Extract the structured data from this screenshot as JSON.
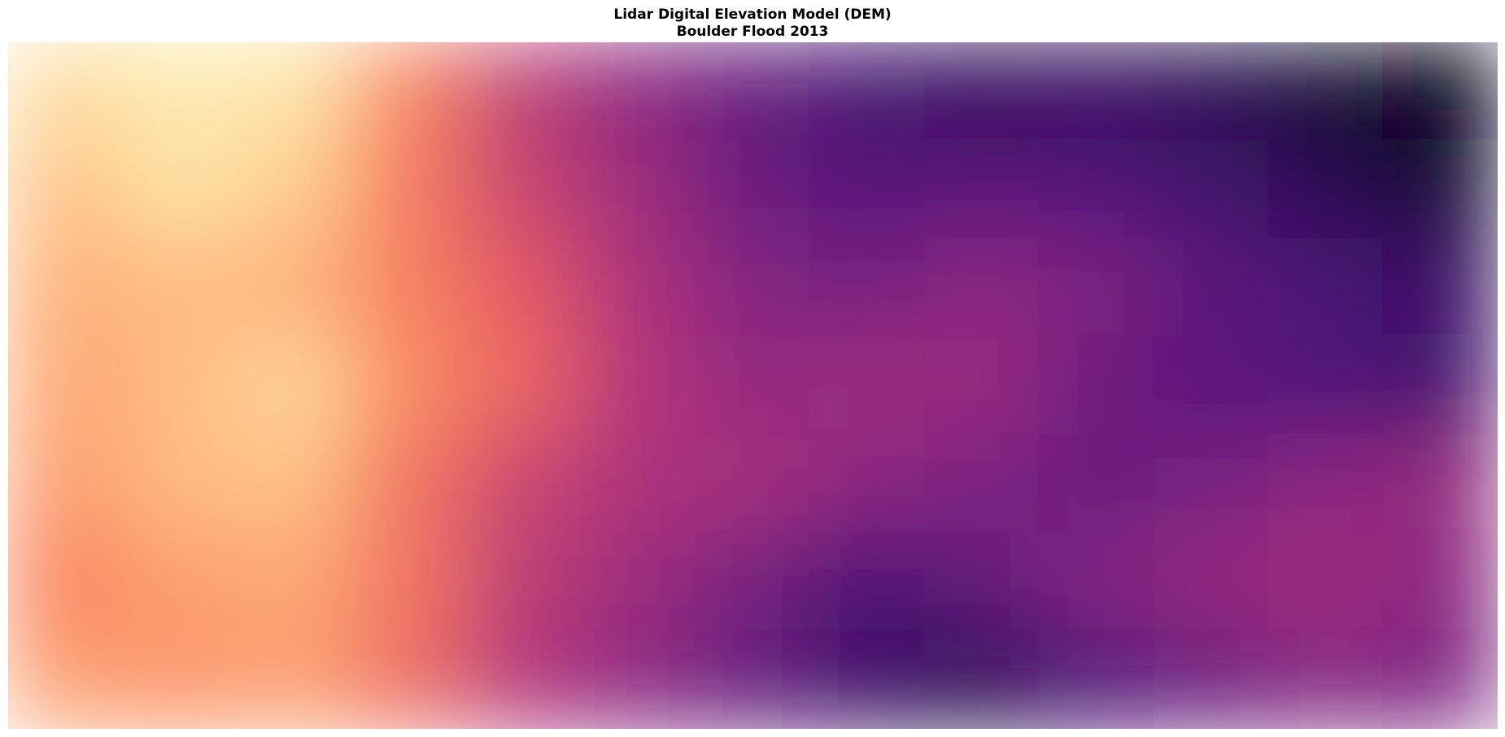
{
  "title_line1": "Lidar Digital Elevation Model (DEM)",
  "title_line2": "Boulder Flood 2013",
  "chart_data": {
    "type": "heatmap",
    "title": "Lidar Digital Elevation Model (DEM)\nBoulder Flood 2013",
    "xlabel": "",
    "ylabel": "",
    "axes_visible": false,
    "grid": false,
    "legend": "none",
    "colormap": "magma",
    "colormap_stops": [
      "#000004",
      "#1c1044",
      "#4f127b",
      "#812581",
      "#b5367a",
      "#e55964",
      "#fb8761",
      "#fec287",
      "#fcfdbf"
    ],
    "relative_elevation_grid": [
      [
        0.93,
        0.96,
        0.95,
        0.74,
        0.52,
        0.4,
        0.3,
        0.22,
        0.18,
        0.19,
        0.15,
        0.09,
        0.02
      ],
      [
        0.88,
        0.94,
        0.9,
        0.72,
        0.55,
        0.44,
        0.32,
        0.27,
        0.28,
        0.26,
        0.22,
        0.16,
        0.1
      ],
      [
        0.84,
        0.86,
        0.84,
        0.73,
        0.62,
        0.48,
        0.38,
        0.35,
        0.4,
        0.36,
        0.28,
        0.24,
        0.2
      ],
      [
        0.82,
        0.86,
        0.92,
        0.76,
        0.66,
        0.5,
        0.42,
        0.44,
        0.43,
        0.33,
        0.28,
        0.25,
        0.22
      ],
      [
        0.8,
        0.86,
        0.87,
        0.7,
        0.55,
        0.48,
        0.46,
        0.4,
        0.36,
        0.32,
        0.35,
        0.4,
        0.42
      ],
      [
        0.74,
        0.8,
        0.82,
        0.7,
        0.52,
        0.44,
        0.34,
        0.24,
        0.3,
        0.38,
        0.42,
        0.45,
        0.4
      ],
      [
        0.8,
        0.78,
        0.8,
        0.68,
        0.5,
        0.4,
        0.3,
        0.2,
        0.16,
        0.24,
        0.32,
        0.38,
        0.36
      ]
    ]
  }
}
